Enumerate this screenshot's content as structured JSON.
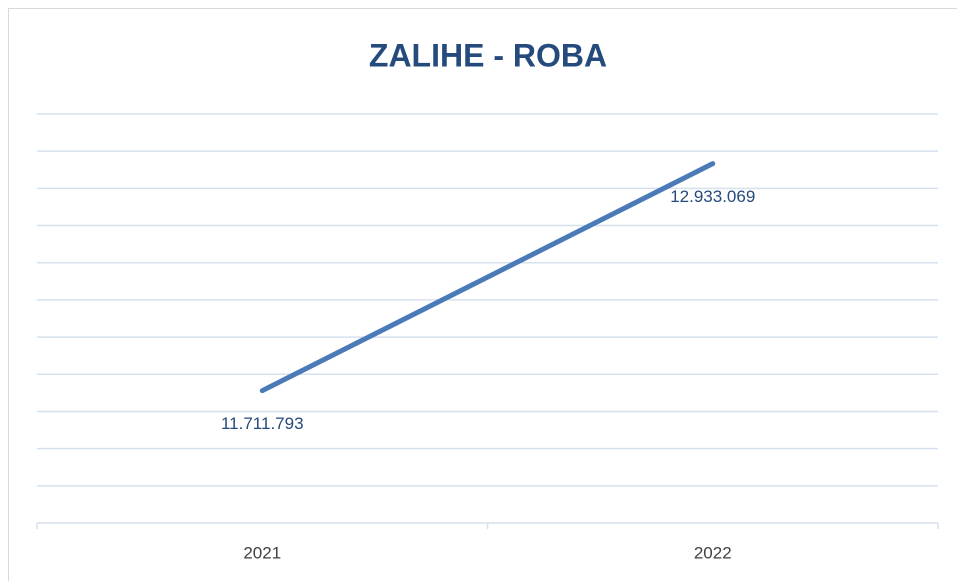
{
  "chart_data": {
    "type": "line",
    "title": "ZALIHE - ROBA",
    "categories": [
      "2021",
      "2022"
    ],
    "series": [
      {
        "name": null,
        "color": "#4a7ab8",
        "values": [
          11711793,
          12933069
        ],
        "value_labels": [
          "11.711.793",
          "12.933.069"
        ]
      }
    ],
    "ylim": [
      11000000,
      13200000
    ],
    "yticks": [
      11000000,
      11200000,
      11400000,
      11600000,
      11800000,
      12000000,
      12200000,
      12400000,
      12600000,
      12800000,
      13000000,
      13200000
    ],
    "grid": true
  }
}
